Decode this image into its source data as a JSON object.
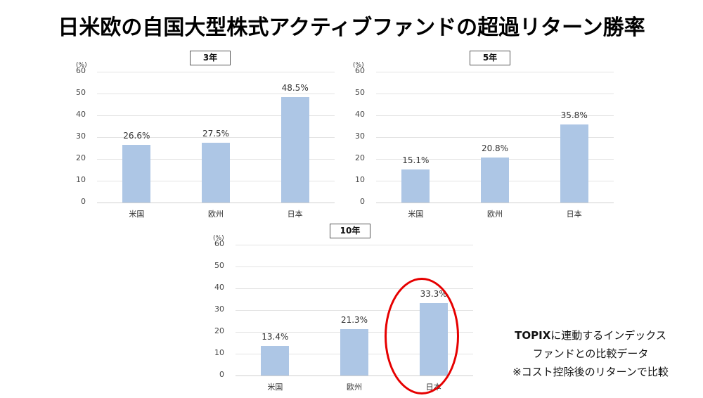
{
  "title": "日米欧の自国大型株式アクティブファンドの超過リターン勝率",
  "note": {
    "line1_bold": "TOPIX",
    "line1_rest": "に連動するインデックス",
    "line2": "ファンドとの比較データ",
    "line3": "※コスト控除後のリターンで比較"
  },
  "colors": {
    "bar": "#adc6e5",
    "highlight_ellipse": "#e60000",
    "grid": "#e3e3e3"
  },
  "chart_data": [
    {
      "type": "bar",
      "title": "3年",
      "ylabel": "(%)",
      "categories": [
        "米国",
        "欧州",
        "日本"
      ],
      "values": [
        26.6,
        27.5,
        48.5
      ],
      "value_labels": [
        "26.6%",
        "27.5%",
        "48.5%"
      ],
      "ylim": [
        0,
        60
      ],
      "yticks": [
        "60",
        "50",
        "40",
        "30",
        "20",
        "10",
        "0"
      ],
      "grid": true
    },
    {
      "type": "bar",
      "title": "5年",
      "ylabel": "(%)",
      "categories": [
        "米国",
        "欧州",
        "日本"
      ],
      "values": [
        15.1,
        20.8,
        35.8
      ],
      "value_labels": [
        "15.1%",
        "20.8%",
        "35.8%"
      ],
      "ylim": [
        0,
        60
      ],
      "yticks": [
        "60",
        "50",
        "40",
        "30",
        "20",
        "10",
        "0"
      ],
      "grid": true
    },
    {
      "type": "bar",
      "title": "10年",
      "ylabel": "(%)",
      "categories": [
        "米国",
        "欧州",
        "日本"
      ],
      "values": [
        13.4,
        21.3,
        33.3
      ],
      "value_labels": [
        "13.4%",
        "21.3%",
        "33.3%"
      ],
      "ylim": [
        0,
        60
      ],
      "yticks": [
        "60",
        "50",
        "40",
        "30",
        "20",
        "10",
        "0"
      ],
      "grid": true,
      "annotation": "日本 bar circled in red"
    }
  ]
}
